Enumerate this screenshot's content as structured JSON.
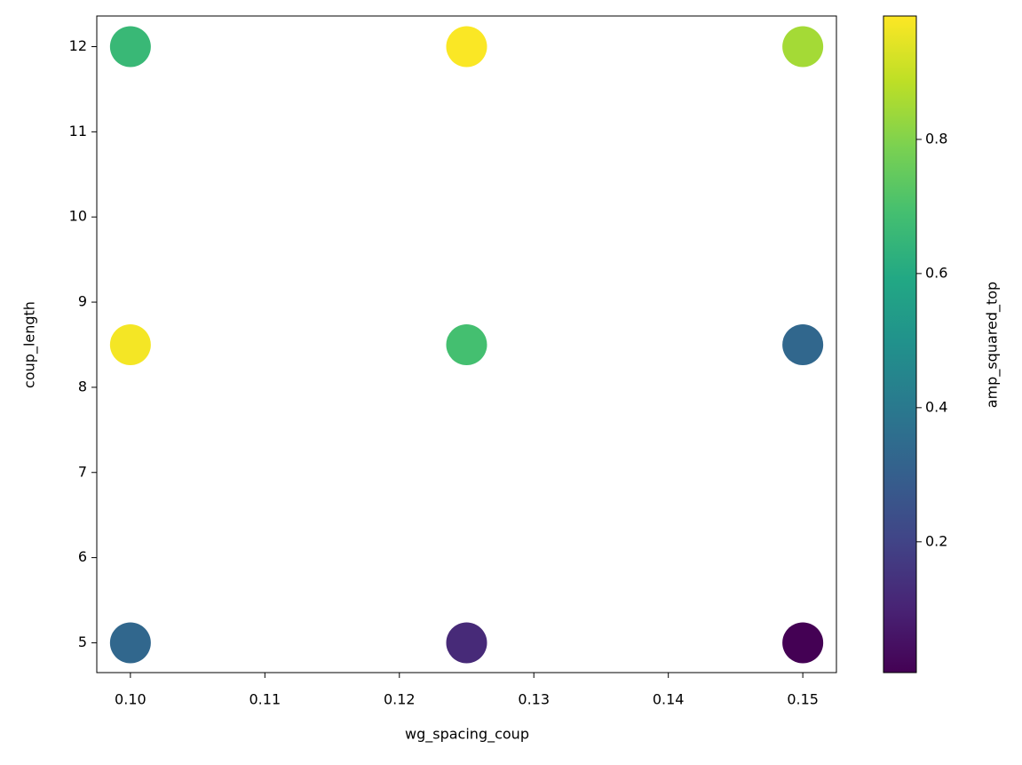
{
  "chart_data": {
    "type": "scatter",
    "x_label": "wg_spacing_coup",
    "y_label": "coup_length",
    "colorbar_label": "amp_squared_top",
    "colormap": "viridis",
    "x": [
      0.1,
      0.125,
      0.15,
      0.1,
      0.125,
      0.15,
      0.1,
      0.125,
      0.15
    ],
    "y": [
      12,
      12,
      12,
      8.5,
      8.5,
      8.5,
      5,
      5,
      5
    ],
    "c": [
      0.66,
      0.98,
      0.85,
      0.97,
      0.69,
      0.33,
      0.33,
      0.12,
      0.005
    ],
    "xlim": [
      0.0975,
      0.1525
    ],
    "xticks": [
      {
        "value": 0.1,
        "label": "0.10"
      },
      0.11,
      0.12,
      0.13,
      0.14,
      0.15
    ],
    "ylim": [
      4.65,
      12.36
    ],
    "yticks": [
      5,
      6,
      7,
      8,
      9,
      10,
      11,
      12
    ],
    "clim": [
      0.005,
      0.984
    ],
    "cticks": [
      0.2,
      0.4,
      0.6,
      0.8
    ]
  }
}
